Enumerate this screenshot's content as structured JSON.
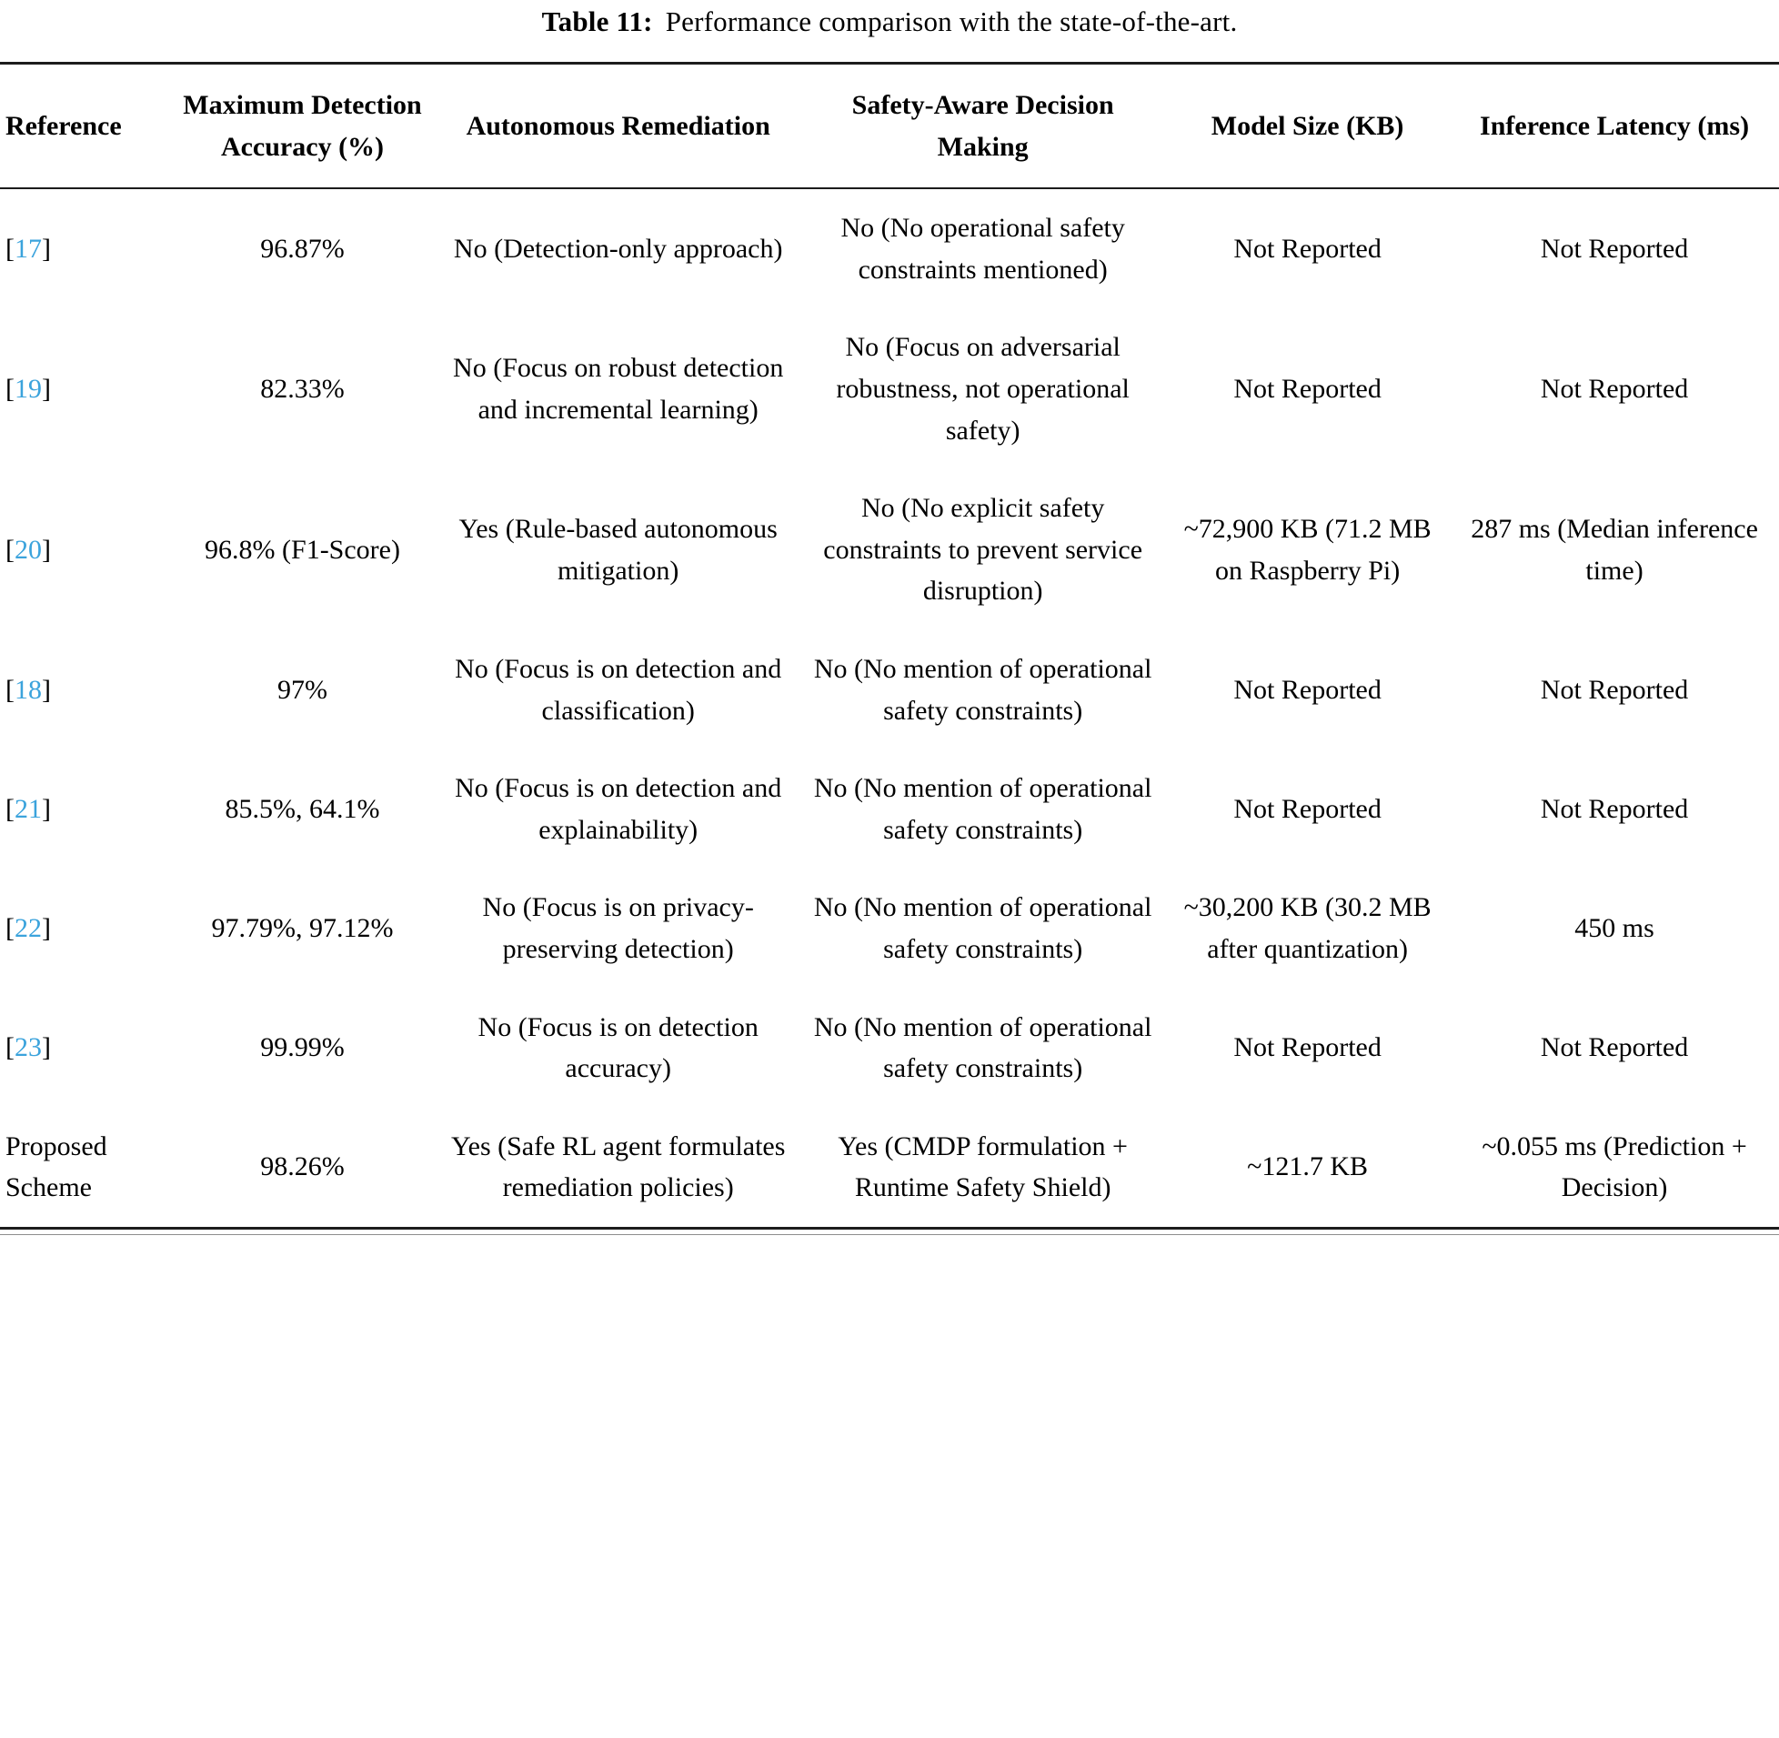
{
  "caption": {
    "label": "Table 11:",
    "text": "Performance comparison with the state-of-the-art."
  },
  "colors": {
    "citation_blue": "#3ba3dc",
    "text_black": "#000000",
    "rule_black": "#1c1c1c"
  },
  "table": {
    "columns": [
      {
        "key": "reference",
        "label": "Reference"
      },
      {
        "key": "accuracy",
        "label": "Maximum Detection Accuracy (%)"
      },
      {
        "key": "autonomous_remediation",
        "label": "Autonomous Remediation"
      },
      {
        "key": "safety_aware",
        "label": "Safety-Aware Decision Making"
      },
      {
        "key": "model_size",
        "label": "Model Size (KB)"
      },
      {
        "key": "inference_latency",
        "label": "Inference Latency (ms)"
      }
    ],
    "rows": [
      {
        "reference": {
          "text": "17",
          "citation": true
        },
        "accuracy": "96.87%",
        "autonomous_remediation": "No (Detection-only approach)",
        "safety_aware": "No (No operational safety constraints mentioned)",
        "model_size": "Not Reported",
        "inference_latency": "Not Reported"
      },
      {
        "reference": {
          "text": "19",
          "citation": true
        },
        "accuracy": "82.33%",
        "autonomous_remediation": "No (Focus on robust detection and incremental learning)",
        "safety_aware": "No (Focus on adversarial robustness, not operational safety)",
        "model_size": "Not Reported",
        "inference_latency": "Not Reported"
      },
      {
        "reference": {
          "text": "20",
          "citation": true
        },
        "accuracy": "96.8% (F1-Score)",
        "autonomous_remediation": "Yes (Rule-based autonomous mitigation)",
        "safety_aware": "No (No explicit safety constraints to prevent service disruption)",
        "model_size": "~72,900 KB (71.2 MB on Raspberry Pi)",
        "inference_latency": "287 ms (Median inference time)"
      },
      {
        "reference": {
          "text": "18",
          "citation": true
        },
        "accuracy": "97%",
        "autonomous_remediation": "No (Focus is on detection and classification)",
        "safety_aware": "No (No mention of operational safety constraints)",
        "model_size": "Not Reported",
        "inference_latency": "Not Reported"
      },
      {
        "reference": {
          "text": "21",
          "citation": true
        },
        "accuracy": "85.5%, 64.1%",
        "autonomous_remediation": "No (Focus is on detection and explainability)",
        "safety_aware": "No (No mention of operational safety constraints)",
        "model_size": "Not Reported",
        "inference_latency": "Not Reported"
      },
      {
        "reference": {
          "text": "22",
          "citation": true
        },
        "accuracy": "97.79%, 97.12%",
        "autonomous_remediation": "No (Focus is on privacy-preserving detection)",
        "safety_aware": "No (No mention of operational safety constraints)",
        "model_size": "~30,200 KB (30.2 MB after quantization)",
        "inference_latency": "450 ms"
      },
      {
        "reference": {
          "text": "23",
          "citation": true
        },
        "accuracy": "99.99%",
        "autonomous_remediation": "No (Focus is on detection accuracy)",
        "safety_aware": "No (No mention of operational safety constraints)",
        "model_size": "Not Reported",
        "inference_latency": "Not Reported"
      },
      {
        "reference": {
          "text": "Proposed Scheme",
          "citation": false
        },
        "accuracy": "98.26%",
        "autonomous_remediation": "Yes (Safe RL agent formulates remediation policies)",
        "safety_aware": "Yes (CMDP formulation + Runtime Safety Shield)",
        "model_size": "~121.7 KB",
        "inference_latency": "~0.055 ms (Prediction + Decision)"
      }
    ]
  }
}
